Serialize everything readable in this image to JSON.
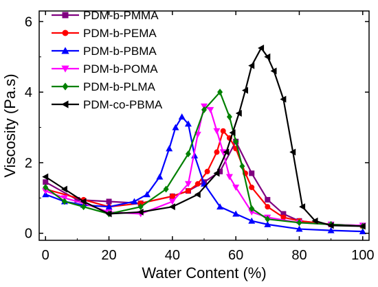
{
  "chart_data": {
    "type": "line",
    "xlabel": "Water Content (%)",
    "ylabel": "Viscosity (Pa.s)",
    "xlim": [
      -2,
      102
    ],
    "ylim": [
      -0.2,
      6.3
    ],
    "xticks": [
      0,
      20,
      40,
      60,
      80,
      100
    ],
    "yticks": [
      0,
      2,
      4,
      6
    ],
    "xtick_labels": [
      "0",
      "20",
      "40",
      "60",
      "80",
      "100"
    ],
    "ytick_labels": [
      "0",
      "2",
      "4",
      "6"
    ],
    "legend_position": "top-left",
    "series": [
      {
        "name": "PDM-b-PMMA",
        "color": "#800080",
        "marker": "square",
        "x": [
          0,
          10,
          20,
          30,
          40,
          45,
          50,
          55,
          60,
          65,
          70,
          75,
          80,
          90,
          100
        ],
        "y": [
          1.45,
          0.95,
          0.9,
          0.85,
          1.05,
          1.2,
          1.45,
          1.75,
          2.6,
          1.7,
          0.95,
          0.55,
          0.35,
          0.25,
          0.22
        ]
      },
      {
        "name": "PDM-b-PEMA",
        "color": "#ff0000",
        "marker": "circle",
        "x": [
          0,
          12,
          20,
          30,
          40,
          45,
          48,
          51,
          54,
          56,
          58,
          60,
          63,
          65,
          70,
          75,
          80,
          90,
          100
        ],
        "y": [
          1.25,
          0.95,
          0.75,
          0.85,
          1.05,
          1.2,
          1.4,
          1.75,
          2.3,
          2.9,
          2.7,
          2.4,
          1.7,
          1.3,
          0.75,
          0.45,
          0.35,
          0.25,
          0.2
        ]
      },
      {
        "name": "PDM-b-PBMA",
        "color": "#0000ff",
        "marker": "triangle-up",
        "x": [
          0,
          6,
          12,
          20,
          28,
          32,
          36,
          39,
          41,
          43,
          45,
          47,
          50,
          55,
          60,
          65,
          70,
          80,
          90,
          100
        ],
        "y": [
          1.1,
          0.9,
          0.8,
          0.75,
          0.9,
          1.1,
          1.6,
          2.4,
          3.0,
          3.3,
          3.1,
          2.2,
          1.4,
          0.75,
          0.55,
          0.35,
          0.25,
          0.12,
          0.08,
          0.05
        ]
      },
      {
        "name": "PDM-b-POMA",
        "color": "#ff00ff",
        "marker": "triangle-down",
        "x": [
          0,
          6,
          12,
          20,
          30,
          40,
          45,
          48,
          50,
          52,
          54,
          56,
          58,
          60,
          65,
          70,
          80,
          90,
          100
        ],
        "y": [
          1.2,
          1.0,
          0.85,
          0.6,
          0.55,
          0.9,
          1.4,
          2.8,
          3.6,
          3.5,
          2.9,
          2.3,
          1.6,
          1.3,
          0.6,
          0.45,
          0.3,
          0.25,
          0.22
        ]
      },
      {
        "name": "PDM-b-PLMA",
        "color": "#008000",
        "marker": "diamond",
        "x": [
          0,
          6,
          12,
          20,
          30,
          38,
          45,
          50,
          55,
          58,
          60,
          62,
          65,
          70,
          80,
          90,
          100
        ],
        "y": [
          1.3,
          0.9,
          0.75,
          0.55,
          0.75,
          1.25,
          2.25,
          3.5,
          4.0,
          3.3,
          2.6,
          1.9,
          0.7,
          0.4,
          0.3,
          0.25,
          0.2
        ]
      },
      {
        "name": "PDM-co-PBMA",
        "color": "#000000",
        "marker": "triangle-left",
        "x": [
          0,
          6,
          12,
          20,
          30,
          40,
          48,
          54,
          57,
          59,
          61,
          63,
          65,
          68,
          70,
          72,
          75,
          78,
          81,
          85,
          90,
          100
        ],
        "y": [
          1.6,
          1.25,
          0.9,
          0.55,
          0.6,
          0.75,
          1.1,
          1.7,
          2.3,
          2.85,
          3.4,
          4.05,
          4.75,
          5.25,
          5.0,
          4.6,
          3.8,
          2.3,
          0.75,
          0.35,
          0.22,
          0.2
        ]
      }
    ]
  }
}
